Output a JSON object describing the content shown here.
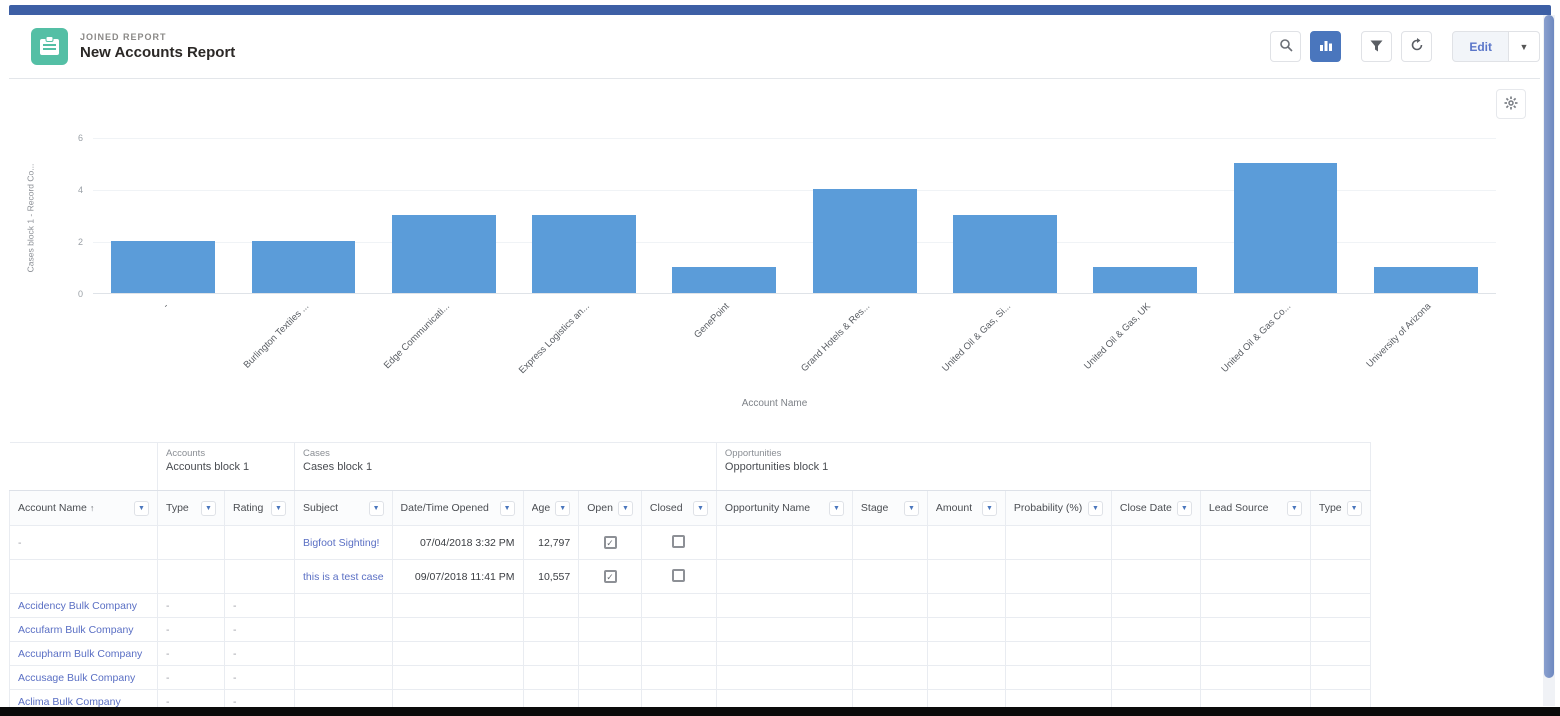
{
  "theme": {
    "accent_blue": "#4a76bd",
    "bar_blue": "#5b9cd9",
    "report_icon_teal": "#54bfa5",
    "block_accounts_color": "#5876c9",
    "block_cases_color": "#7cc06a",
    "block_opportunities_color": "#bf7150",
    "link_color": "#5a6fc4",
    "scrollbar_color": "#7b92c6"
  },
  "header": {
    "kicker": "JOINED REPORT",
    "title": "New Accounts Report",
    "toolbar": {
      "search_icon": "search-icon",
      "chart_icon": "chart-icon (active)",
      "filter_icon": "filter-icon",
      "refresh_icon": "refresh-icon",
      "edit_label": "Edit",
      "edit_menu_icon": "chevron-down-icon"
    }
  },
  "chart_data": {
    "type": "bar",
    "title": "",
    "categories": [
      "-",
      "Burlington Textiles ...",
      "Edge Communicati...",
      "Express Logistics an...",
      "GenePoint",
      "Grand Hotels & Res...",
      "United Oil & Gas, Si...",
      "United Oil & Gas, UK",
      "United Oil & Gas Co...",
      "University of Arizona"
    ],
    "values": [
      2,
      2,
      3,
      3,
      1,
      4,
      3,
      1,
      5,
      1
    ],
    "xlabel": "Account Name",
    "ylabel": "Cases block 1 - Record Co...",
    "yticks": [
      0,
      2,
      4,
      6
    ],
    "ylim": [
      0,
      6
    ],
    "grid": true,
    "legend": "none",
    "settings_icon": "gear-icon"
  },
  "table": {
    "blocks": [
      {
        "kicker": "Accounts",
        "name": "Accounts block 1",
        "colspan": 2,
        "class": "block-accounts"
      },
      {
        "kicker": "Cases",
        "name": "Cases block 1",
        "colspan": 5,
        "class": "block-cases"
      },
      {
        "kicker": "Opportunities",
        "name": "Opportunities block 1",
        "colspan": 7,
        "class": "block-opps"
      }
    ],
    "columns": [
      {
        "key": "account",
        "label": "Account Name",
        "width": 148,
        "sorted": "asc"
      },
      {
        "key": "type",
        "label": "Type",
        "width": 67
      },
      {
        "key": "rating",
        "label": "Rating",
        "width": 70
      },
      {
        "key": "subject",
        "label": "Subject",
        "width": 96
      },
      {
        "key": "opened",
        "label": "Date/Time Opened",
        "width": 131
      },
      {
        "key": "age",
        "label": "Age",
        "width": 55
      },
      {
        "key": "open",
        "label": "Open",
        "width": 60
      },
      {
        "key": "closed",
        "label": "Closed",
        "width": 75
      },
      {
        "key": "opp",
        "label": "Opportunity Name",
        "width": 136
      },
      {
        "key": "stage",
        "label": "Stage",
        "width": 75
      },
      {
        "key": "amount",
        "label": "Amount",
        "width": 78
      },
      {
        "key": "probability",
        "label": "Probability (%)",
        "width": 106
      },
      {
        "key": "closeDate",
        "label": "Close Date",
        "width": 86
      },
      {
        "key": "leadSource",
        "label": "Lead Source",
        "width": 110
      },
      {
        "key": "oppType",
        "label": "Type",
        "width": 58
      }
    ],
    "rows": [
      {
        "kind": "case",
        "account": "-",
        "account_link": false,
        "type": "",
        "rating": "",
        "subject": "Bigfoot Sighting!",
        "subject_link": true,
        "opened": "07/04/2018 3:32 PM",
        "age": "12,797",
        "open": "checked",
        "closed": "unchecked"
      },
      {
        "kind": "case",
        "account": "",
        "account_link": false,
        "type": "",
        "rating": "",
        "subject": "this is a test case",
        "subject_link": true,
        "opened": "09/07/2018 11:41 PM",
        "age": "10,557",
        "open": "checked",
        "closed": "unchecked"
      },
      {
        "kind": "acct",
        "account": "Accidency Bulk Company",
        "account_link": true,
        "type": "-",
        "rating": "-"
      },
      {
        "kind": "acct",
        "account": "Accufarm Bulk Company",
        "account_link": true,
        "type": "-",
        "rating": "-"
      },
      {
        "kind": "acct",
        "account": "Accupharm Bulk Company",
        "account_link": true,
        "type": "-",
        "rating": "-"
      },
      {
        "kind": "acct",
        "account": "Accusage Bulk Company",
        "account_link": true,
        "type": "-",
        "rating": "-"
      },
      {
        "kind": "acct",
        "account": "Aclima Bulk Company",
        "account_link": true,
        "type": "-",
        "rating": "-"
      }
    ]
  }
}
